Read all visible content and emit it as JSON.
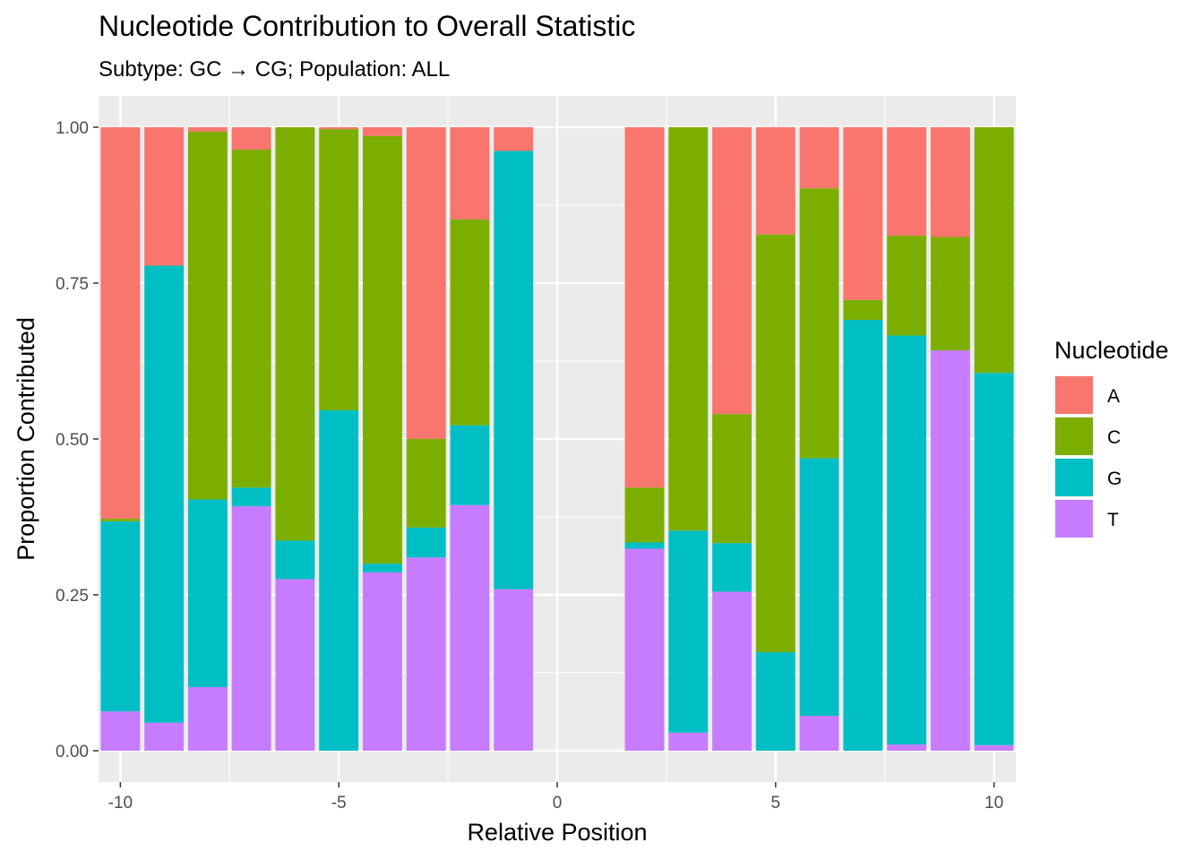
{
  "chart_data": {
    "type": "bar",
    "stacked": true,
    "title": "Nucleotide Contribution to Overall Statistic",
    "subtitle": "Subtype: GC → CG; Population: ALL",
    "xlabel": "Relative Position",
    "ylabel": "Proportion Contributed",
    "xlim": [
      -10.5,
      10.5
    ],
    "ylim": [
      0,
      1
    ],
    "x_ticks": [
      -10,
      -5,
      0,
      5,
      10
    ],
    "x_tick_labels": [
      "-10",
      "-5",
      "0",
      "5",
      "10"
    ],
    "y_ticks": [
      0,
      0.25,
      0.5,
      0.75,
      1.0
    ],
    "y_tick_labels": [
      "0.00",
      "0.25",
      "0.50",
      "0.75",
      "1.00"
    ],
    "grid": true,
    "legend_title": "Nucleotide",
    "legend_position": "right",
    "x": [
      -10,
      -9,
      -8,
      -7,
      -6,
      -5,
      -4,
      -3,
      -2,
      -1,
      2,
      3,
      4,
      5,
      6,
      7,
      8,
      9,
      10
    ],
    "series": [
      {
        "name": "A",
        "color": "#F8766D",
        "values": [
          0.628,
          0.222,
          0.007,
          0.036,
          0.0,
          0.003,
          0.014,
          0.5,
          0.148,
          0.038,
          0.578,
          0.0,
          0.46,
          0.172,
          0.098,
          0.277,
          0.174,
          0.176,
          0.0
        ]
      },
      {
        "name": "C",
        "color": "#7CAE00",
        "values": [
          0.004,
          0.0,
          0.59,
          0.542,
          0.663,
          0.451,
          0.686,
          0.142,
          0.33,
          0.0,
          0.088,
          0.647,
          0.207,
          0.67,
          0.433,
          0.032,
          0.16,
          0.182,
          0.394
        ]
      },
      {
        "name": "G",
        "color": "#00BFC4",
        "values": [
          0.305,
          0.733,
          0.301,
          0.03,
          0.062,
          0.546,
          0.014,
          0.048,
          0.128,
          0.703,
          0.01,
          0.324,
          0.078,
          0.158,
          0.413,
          0.691,
          0.656,
          0.0,
          0.597
        ]
      },
      {
        "name": "T",
        "color": "#C77CFF",
        "values": [
          0.063,
          0.045,
          0.102,
          0.392,
          0.275,
          0.0,
          0.286,
          0.31,
          0.394,
          0.259,
          0.324,
          0.029,
          0.255,
          0.0,
          0.056,
          0.0,
          0.01,
          0.642,
          0.009
        ]
      }
    ]
  }
}
